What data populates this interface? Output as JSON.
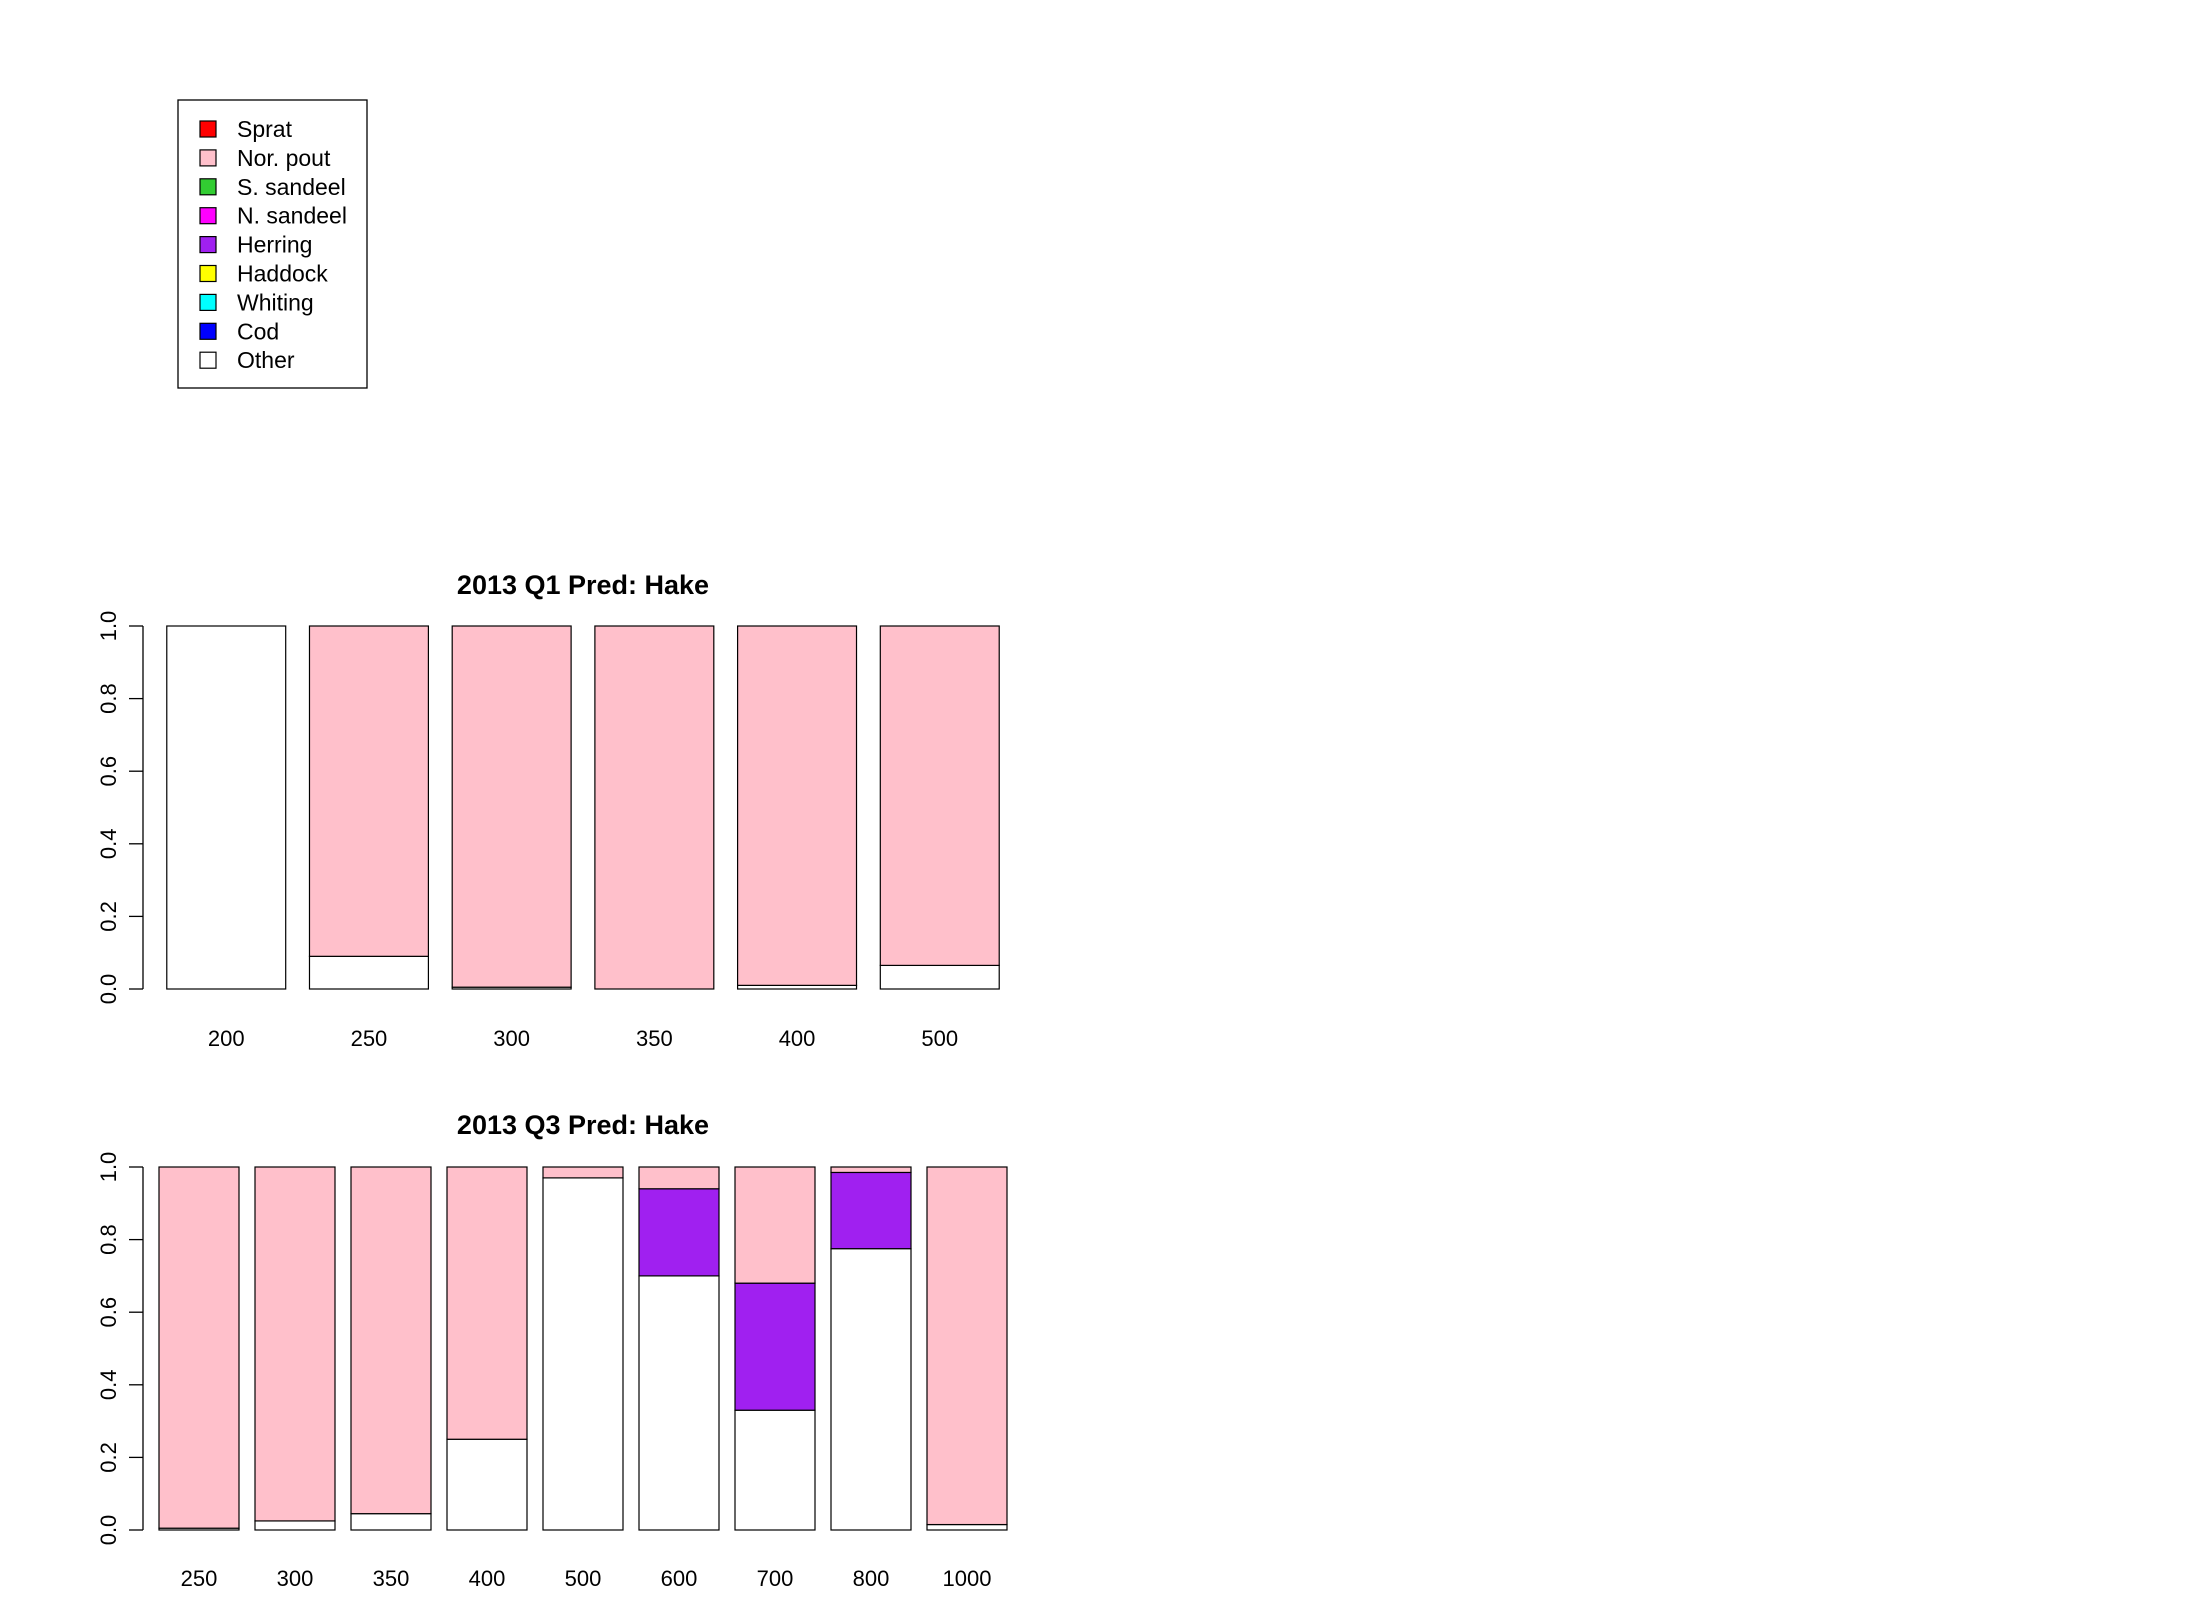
{
  "legend": {
    "items": [
      {
        "label": "Sprat",
        "color": "#FF0000"
      },
      {
        "label": "Nor. pout",
        "color": "#FFC0CB"
      },
      {
        "label": "S. sandeel",
        "color": "#32CD32"
      },
      {
        "label": "N. sandeel",
        "color": "#FF00FF"
      },
      {
        "label": "Herring",
        "color": "#A020F0"
      },
      {
        "label": "Haddock",
        "color": "#FFFF00"
      },
      {
        "label": "Whiting",
        "color": "#00FFFF"
      },
      {
        "label": "Cod",
        "color": "#0000FF"
      },
      {
        "label": "Other",
        "color": "#FFFFFF"
      }
    ]
  },
  "chart_data": [
    {
      "type": "bar",
      "stacked": true,
      "title": "2013 Q1  Pred: Hake",
      "categories": [
        "200",
        "250",
        "300",
        "350",
        "400",
        "500"
      ],
      "ylim": [
        0,
        1
      ],
      "yticks": [
        "0.0",
        "0.2",
        "0.4",
        "0.6",
        "0.8",
        "1.0"
      ],
      "series": [
        {
          "name": "Other",
          "color": "#FFFFFF",
          "values": [
            1.0,
            0.09,
            0.005,
            0.0,
            0.01,
            0.065
          ]
        },
        {
          "name": "Herring",
          "color": "#A020F0",
          "values": [
            0,
            0,
            0,
            0,
            0,
            0
          ]
        },
        {
          "name": "Nor. pout",
          "color": "#FFC0CB",
          "values": [
            0.0,
            0.91,
            0.995,
            1.0,
            0.99,
            0.935
          ]
        }
      ]
    },
    {
      "type": "bar",
      "stacked": true,
      "title": "2013 Q3  Pred: Hake",
      "categories": [
        "250",
        "300",
        "350",
        "400",
        "500",
        "600",
        "700",
        "800",
        "1000"
      ],
      "ylim": [
        0,
        1
      ],
      "yticks": [
        "0.0",
        "0.2",
        "0.4",
        "0.6",
        "0.8",
        "1.0"
      ],
      "series": [
        {
          "name": "Other",
          "color": "#FFFFFF",
          "values": [
            0.005,
            0.025,
            0.045,
            0.25,
            0.97,
            0.7,
            0.33,
            0.775,
            0.015
          ]
        },
        {
          "name": "Herring",
          "color": "#A020F0",
          "values": [
            0,
            0,
            0,
            0,
            0,
            0.24,
            0.35,
            0.21,
            0
          ]
        },
        {
          "name": "Nor. pout",
          "color": "#FFC0CB",
          "values": [
            0.995,
            0.975,
            0.955,
            0.75,
            0.03,
            0.06,
            0.32,
            0.015,
            0.985
          ]
        }
      ]
    }
  ]
}
